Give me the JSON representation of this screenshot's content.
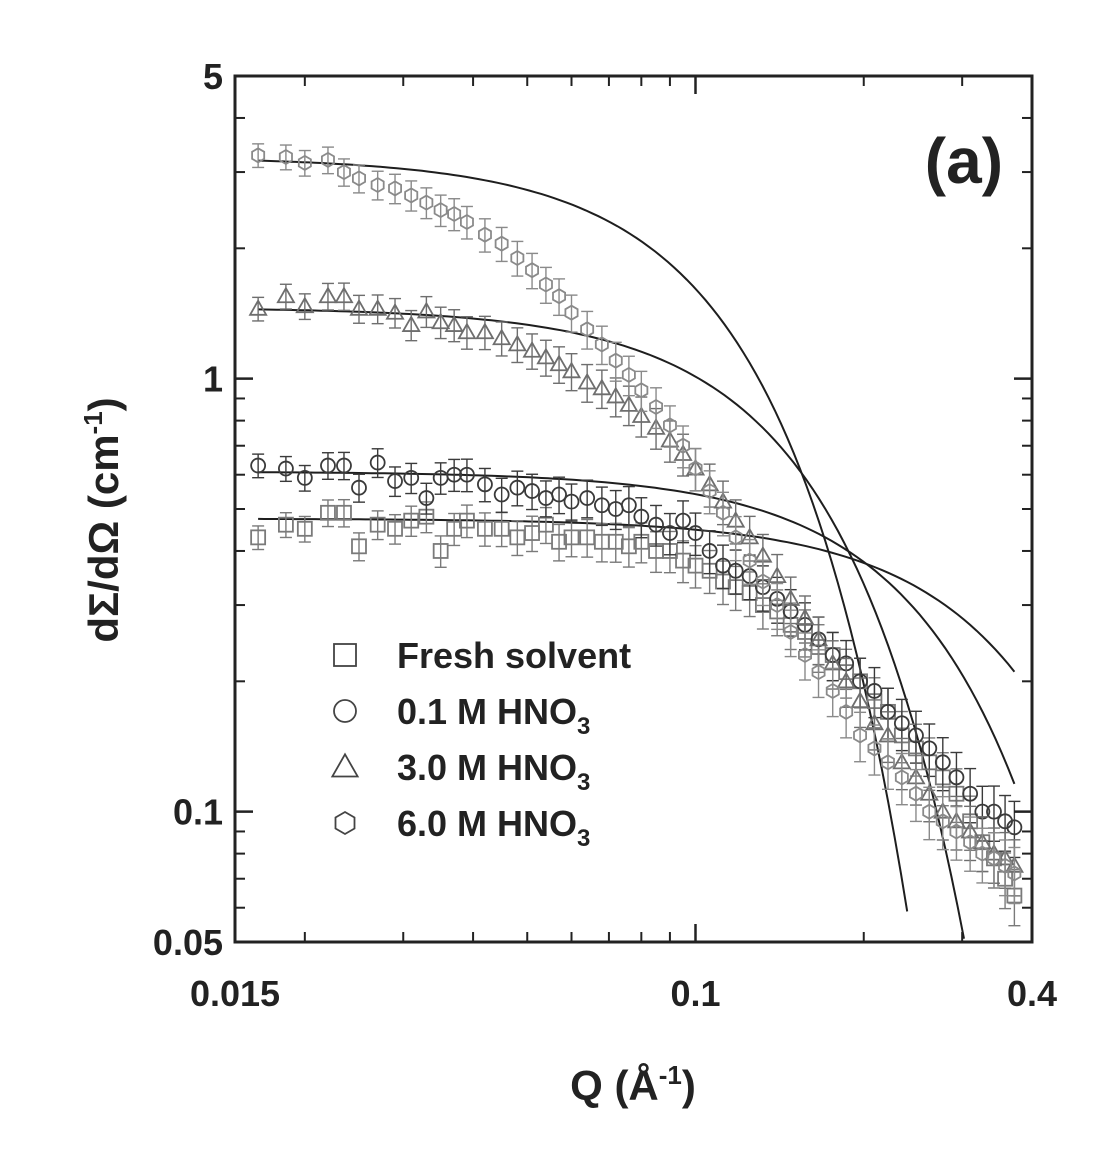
{
  "chart_data": {
    "type": "scatter",
    "title": "",
    "panel_label": "(a)",
    "xlabel": {
      "main": "Q (Å",
      "sup": "-1",
      "end": ")"
    },
    "ylabel": {
      "main": "dΣ/dΩ (cm",
      "sup": "-1",
      "end": ")"
    },
    "xscale": "log",
    "yscale": "log",
    "xlim": [
      0.015,
      0.4
    ],
    "ylim": [
      0.05,
      5
    ],
    "x_ticks": [
      {
        "value": 0.015,
        "label": "0.015"
      },
      {
        "value": 0.1,
        "label": "0.1"
      },
      {
        "value": 0.4,
        "label": "0.4"
      }
    ],
    "y_ticks": [
      {
        "value": 0.05,
        "label": "0.05"
      },
      {
        "value": 0.1,
        "label": "0.1"
      },
      {
        "value": 1,
        "label": "1"
      },
      {
        "value": 5,
        "label": "5"
      }
    ],
    "legend_position": "lower-left",
    "series": [
      {
        "name": "Fresh solvent",
        "label_main": "Fresh solvent",
        "label_sub": "",
        "marker": "square",
        "color": "#7a7a7a",
        "fit": {
          "I0": 0.475,
          "Rg": 4.2
        },
        "x": [
          0.0165,
          0.0185,
          0.02,
          0.022,
          0.0235,
          0.025,
          0.027,
          0.029,
          0.031,
          0.033,
          0.035,
          0.037,
          0.039,
          0.042,
          0.045,
          0.048,
          0.051,
          0.054,
          0.057,
          0.06,
          0.064,
          0.068,
          0.072,
          0.076,
          0.08,
          0.085,
          0.09,
          0.095,
          0.1,
          0.106,
          0.112,
          0.118,
          0.125,
          0.132,
          0.14,
          0.148,
          0.157,
          0.166,
          0.176,
          0.186,
          0.197,
          0.209,
          0.221,
          0.234,
          0.248,
          0.262,
          0.277,
          0.293,
          0.31,
          0.326,
          0.342,
          0.358,
          0.372
        ],
        "y": [
          0.43,
          0.46,
          0.45,
          0.49,
          0.49,
          0.41,
          0.46,
          0.45,
          0.47,
          0.48,
          0.4,
          0.45,
          0.47,
          0.45,
          0.45,
          0.43,
          0.44,
          0.46,
          0.42,
          0.43,
          0.43,
          0.42,
          0.42,
          0.41,
          0.42,
          0.4,
          0.4,
          0.38,
          0.37,
          0.36,
          0.34,
          0.33,
          0.32,
          0.3,
          0.29,
          0.27,
          0.26,
          0.24,
          0.23,
          0.21,
          0.2,
          0.18,
          0.17,
          0.15,
          0.14,
          0.13,
          0.12,
          0.11,
          0.095,
          0.085,
          0.078,
          0.07,
          0.064
        ]
      },
      {
        "name": "0.1 M HNO3",
        "label_main": "0.1 M HNO",
        "label_sub": "3",
        "marker": "circle",
        "color": "#3a3a3a",
        "fit": {
          "I0": 0.61,
          "Rg": 6.0
        },
        "x": [
          0.0165,
          0.0185,
          0.02,
          0.022,
          0.0235,
          0.025,
          0.027,
          0.029,
          0.031,
          0.033,
          0.035,
          0.037,
          0.039,
          0.042,
          0.045,
          0.048,
          0.051,
          0.054,
          0.057,
          0.06,
          0.064,
          0.068,
          0.072,
          0.076,
          0.08,
          0.085,
          0.09,
          0.095,
          0.1,
          0.106,
          0.112,
          0.118,
          0.125,
          0.132,
          0.14,
          0.148,
          0.157,
          0.166,
          0.176,
          0.186,
          0.197,
          0.209,
          0.221,
          0.234,
          0.248,
          0.262,
          0.277,
          0.293,
          0.31,
          0.326,
          0.342,
          0.358,
          0.372
        ],
        "y": [
          0.63,
          0.62,
          0.59,
          0.63,
          0.63,
          0.56,
          0.64,
          0.58,
          0.59,
          0.53,
          0.59,
          0.6,
          0.6,
          0.57,
          0.54,
          0.56,
          0.55,
          0.53,
          0.54,
          0.52,
          0.53,
          0.51,
          0.5,
          0.51,
          0.48,
          0.46,
          0.44,
          0.47,
          0.44,
          0.4,
          0.37,
          0.36,
          0.35,
          0.33,
          0.31,
          0.29,
          0.27,
          0.25,
          0.23,
          0.22,
          0.2,
          0.19,
          0.17,
          0.16,
          0.15,
          0.14,
          0.13,
          0.12,
          0.11,
          0.1,
          0.1,
          0.095,
          0.092
        ]
      },
      {
        "name": "3.0 M HNO3",
        "label_main": "3.0 M HNO",
        "label_sub": "3",
        "marker": "triangle",
        "color": "#6e6e6e",
        "fit": {
          "I0": 1.46,
          "Rg": 10.5
        },
        "x": [
          0.0165,
          0.0185,
          0.02,
          0.022,
          0.0235,
          0.025,
          0.027,
          0.029,
          0.031,
          0.033,
          0.035,
          0.037,
          0.039,
          0.042,
          0.045,
          0.048,
          0.051,
          0.054,
          0.057,
          0.06,
          0.064,
          0.068,
          0.072,
          0.076,
          0.08,
          0.085,
          0.09,
          0.095,
          0.1,
          0.106,
          0.112,
          0.118,
          0.125,
          0.132,
          0.14,
          0.148,
          0.157,
          0.166,
          0.176,
          0.186,
          0.197,
          0.209,
          0.221,
          0.234,
          0.248,
          0.262,
          0.277,
          0.293,
          0.31,
          0.326,
          0.342,
          0.358,
          0.372
        ],
        "y": [
          1.45,
          1.55,
          1.47,
          1.55,
          1.55,
          1.45,
          1.45,
          1.42,
          1.33,
          1.43,
          1.35,
          1.33,
          1.28,
          1.28,
          1.24,
          1.2,
          1.16,
          1.12,
          1.08,
          1.04,
          0.98,
          0.95,
          0.91,
          0.87,
          0.82,
          0.77,
          0.72,
          0.67,
          0.62,
          0.57,
          0.52,
          0.47,
          0.43,
          0.39,
          0.35,
          0.31,
          0.28,
          0.25,
          0.22,
          0.2,
          0.18,
          0.16,
          0.15,
          0.13,
          0.12,
          0.11,
          0.1,
          0.095,
          0.09,
          0.085,
          0.08,
          0.078,
          0.075
        ]
      },
      {
        "name": "6.0 M HNO3",
        "label_main": "6.0 M HNO",
        "label_sub": "3",
        "marker": "hexagon",
        "color": "#8a8a8a",
        "fit": {
          "I0": 3.25,
          "Rg": 14.5
        },
        "x": [
          0.0165,
          0.0185,
          0.02,
          0.022,
          0.0235,
          0.025,
          0.027,
          0.029,
          0.031,
          0.033,
          0.035,
          0.037,
          0.039,
          0.042,
          0.045,
          0.048,
          0.051,
          0.054,
          0.057,
          0.06,
          0.064,
          0.068,
          0.072,
          0.076,
          0.08,
          0.085,
          0.09,
          0.095,
          0.1,
          0.106,
          0.112,
          0.118,
          0.125,
          0.132,
          0.14,
          0.148,
          0.157,
          0.166,
          0.176,
          0.186,
          0.197,
          0.209,
          0.221,
          0.234,
          0.248,
          0.262,
          0.277,
          0.293,
          0.31,
          0.326,
          0.342,
          0.358,
          0.372
        ],
        "y": [
          3.28,
          3.25,
          3.15,
          3.2,
          3.0,
          2.9,
          2.8,
          2.75,
          2.65,
          2.55,
          2.45,
          2.4,
          2.3,
          2.15,
          2.05,
          1.9,
          1.78,
          1.65,
          1.55,
          1.42,
          1.3,
          1.2,
          1.1,
          1.02,
          0.94,
          0.86,
          0.78,
          0.7,
          0.62,
          0.55,
          0.49,
          0.43,
          0.38,
          0.34,
          0.3,
          0.26,
          0.23,
          0.21,
          0.19,
          0.17,
          0.15,
          0.14,
          0.13,
          0.12,
          0.11,
          0.1,
          0.095,
          0.09,
          0.085,
          0.08,
          0.078,
          0.075,
          0.072
        ]
      }
    ]
  }
}
